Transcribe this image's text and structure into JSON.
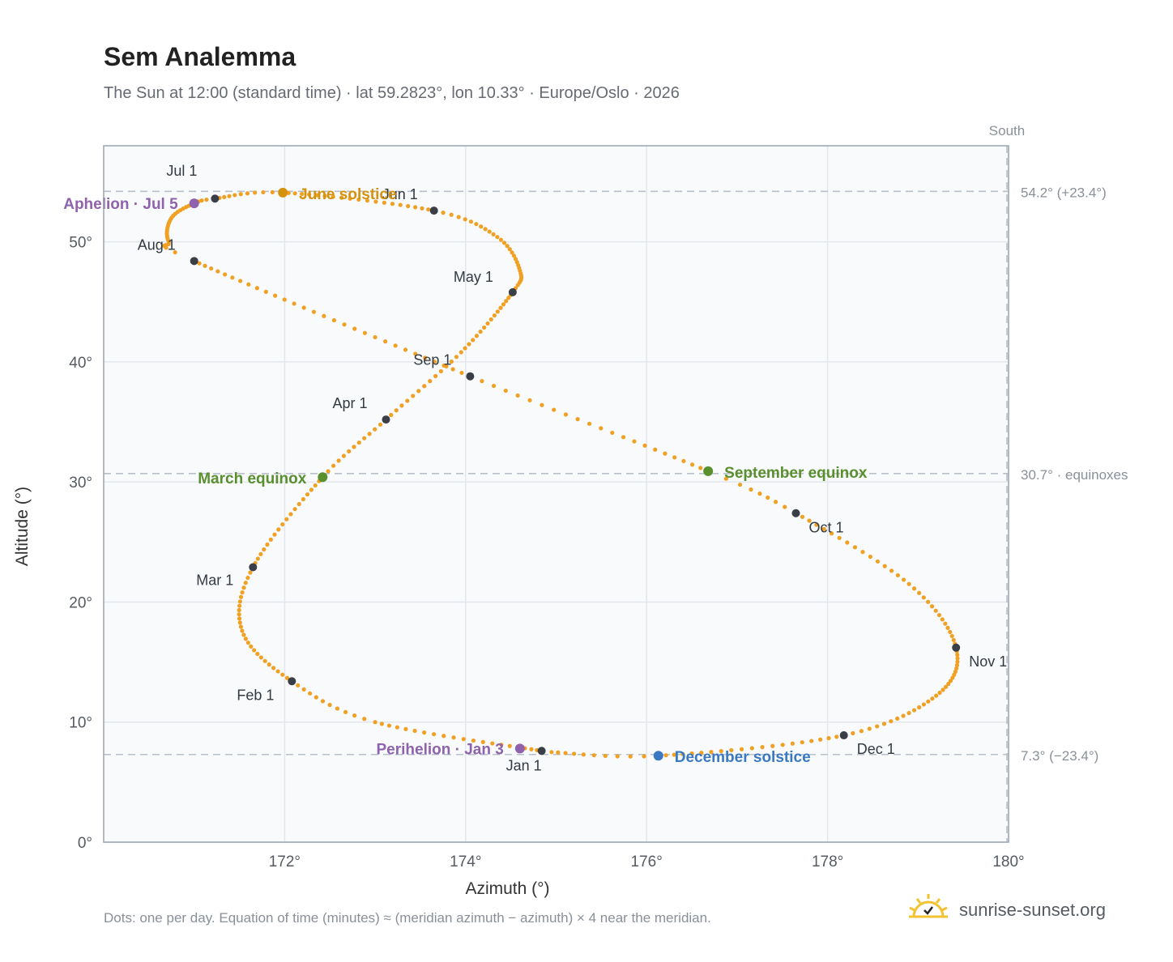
{
  "header": {
    "title": "Sem Analemma",
    "subtitle": "The Sun at 12:00 (standard time) · lat 59.2823°, lon 10.33° · Europe/Oslo · 2026"
  },
  "footer": {
    "note": "Dots: one per day. Equation of time (minutes) ≈ (meridian azimuth − azimuth) × 4 near the meridian.",
    "brand": "sunrise-sunset.org"
  },
  "colors": {
    "path": "#f0a124",
    "month": "#3a3f47",
    "solstice_june": "#d4920e",
    "equinox": "#5a8f2e",
    "solstice_december": "#3b78c2",
    "apsis": "#8e62ad",
    "grid": "#e3e7ec",
    "plot_bg": "#f8fafc",
    "reference": "#b8c0c9"
  },
  "chart_data": {
    "type": "scatter",
    "xlabel": "Azimuth (°)",
    "ylabel": "Altitude (°)",
    "xlim": [
      170,
      180
    ],
    "ylim": [
      0,
      58
    ],
    "x_ticks": [
      172,
      174,
      176,
      178,
      180
    ],
    "y_ticks": [
      0,
      10,
      20,
      30,
      40,
      50
    ],
    "grid": true,
    "south_label": "South",
    "south_azimuth": 180,
    "reference_lines": [
      {
        "altitude": 54.2,
        "label": "54.2° (+23.4°)"
      },
      {
        "altitude": 30.7,
        "label": "30.7° · equinoxes"
      },
      {
        "altitude": 7.3,
        "label": "7.3° (−23.4°)"
      }
    ],
    "month_markers": [
      {
        "label": "Jan 1",
        "azimuth": 174.84,
        "altitude": 7.6
      },
      {
        "label": "Feb 1",
        "azimuth": 172.08,
        "altitude": 13.4
      },
      {
        "label": "Mar 1",
        "azimuth": 171.65,
        "altitude": 22.9
      },
      {
        "label": "Apr 1",
        "azimuth": 173.12,
        "altitude": 35.2
      },
      {
        "label": "May 1",
        "azimuth": 174.52,
        "altitude": 45.8
      },
      {
        "label": "Jun 1",
        "azimuth": 173.65,
        "altitude": 52.6
      },
      {
        "label": "Jul 1",
        "azimuth": 171.23,
        "altitude": 53.6
      },
      {
        "label": "Aug 1",
        "azimuth": 171.0,
        "altitude": 48.4
      },
      {
        "label": "Sep 1",
        "azimuth": 174.05,
        "altitude": 38.8
      },
      {
        "label": "Oct 1",
        "azimuth": 177.65,
        "altitude": 27.4
      },
      {
        "label": "Nov 1",
        "azimuth": 179.42,
        "altitude": 16.2
      },
      {
        "label": "Dec 1",
        "azimuth": 178.18,
        "altitude": 8.9
      }
    ],
    "events": [
      {
        "label": "June solstice",
        "azimuth": 171.98,
        "altitude": 54.1,
        "kind": "solstice_june"
      },
      {
        "label": "March equinox",
        "azimuth": 172.42,
        "altitude": 30.4,
        "kind": "equinox"
      },
      {
        "label": "September equinox",
        "azimuth": 176.68,
        "altitude": 30.9,
        "kind": "equinox"
      },
      {
        "label": "December solstice",
        "azimuth": 176.13,
        "altitude": 7.2,
        "kind": "solstice_december"
      },
      {
        "label": "Aphelion · Jul 5",
        "azimuth": 171.0,
        "altitude": 53.2,
        "kind": "apsis"
      },
      {
        "label": "Perihelion · Jan 3",
        "azimuth": 174.6,
        "altitude": 7.8,
        "kind": "apsis"
      }
    ],
    "analemma_path": [
      {
        "day": 1,
        "azimuth": 174.84,
        "altitude": 7.6
      },
      {
        "day": 21,
        "azimuth": 173.0,
        "altitude": 10.0
      },
      {
        "day": 32,
        "azimuth": 172.08,
        "altitude": 13.4
      },
      {
        "day": 46,
        "azimuth": 171.53,
        "altitude": 17.6
      },
      {
        "day": 60,
        "azimuth": 171.65,
        "altitude": 22.9
      },
      {
        "day": 79,
        "azimuth": 172.42,
        "altitude": 30.4
      },
      {
        "day": 91,
        "azimuth": 173.12,
        "altitude": 35.2
      },
      {
        "day": 105,
        "azimuth": 173.95,
        "altitude": 40.8
      },
      {
        "day": 121,
        "azimuth": 174.52,
        "altitude": 45.8
      },
      {
        "day": 130,
        "azimuth": 174.6,
        "altitude": 47.6
      },
      {
        "day": 141,
        "azimuth": 174.35,
        "altitude": 50.4
      },
      {
        "day": 152,
        "azimuth": 173.65,
        "altitude": 52.6
      },
      {
        "day": 172,
        "azimuth": 171.98,
        "altitude": 54.1
      },
      {
        "day": 182,
        "azimuth": 171.23,
        "altitude": 53.6
      },
      {
        "day": 186,
        "azimuth": 171.0,
        "altitude": 53.2
      },
      {
        "day": 195,
        "azimuth": 170.75,
        "altitude": 52.0
      },
      {
        "day": 207,
        "azimuth": 170.72,
        "altitude": 50.0
      },
      {
        "day": 213,
        "azimuth": 171.0,
        "altitude": 48.4
      },
      {
        "day": 244,
        "azimuth": 174.05,
        "altitude": 38.8
      },
      {
        "day": 266,
        "azimuth": 176.68,
        "altitude": 30.9
      },
      {
        "day": 274,
        "azimuth": 177.65,
        "altitude": 27.4
      },
      {
        "day": 290,
        "azimuth": 178.9,
        "altitude": 21.5
      },
      {
        "day": 305,
        "azimuth": 179.42,
        "altitude": 16.2
      },
      {
        "day": 320,
        "azimuth": 179.2,
        "altitude": 12.2
      },
      {
        "day": 335,
        "azimuth": 178.18,
        "altitude": 8.9
      },
      {
        "day": 355,
        "azimuth": 176.13,
        "altitude": 7.2
      },
      {
        "day": 365,
        "azimuth": 174.95,
        "altitude": 7.5
      }
    ]
  }
}
